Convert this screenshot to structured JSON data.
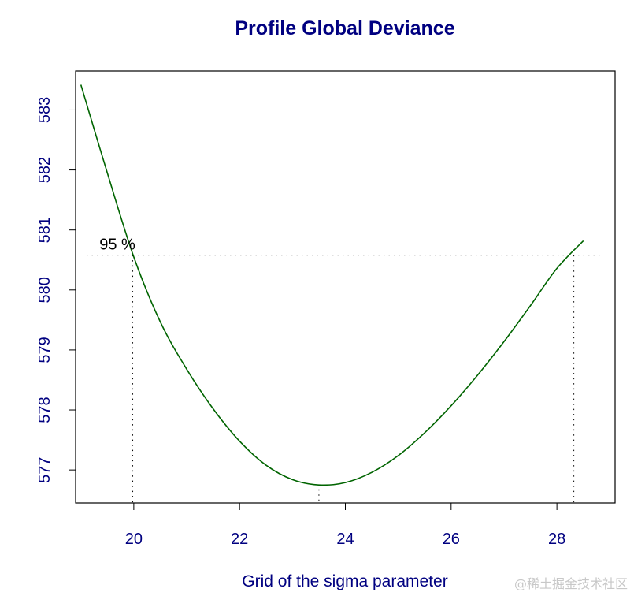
{
  "chart_data": {
    "type": "line",
    "title": "Profile Global Deviance",
    "xlabel": "Grid of the sigma parameter",
    "ylabel": "",
    "xlim": [
      18.9,
      29.1
    ],
    "ylim": [
      576.45,
      583.65
    ],
    "x_ticks": [
      20,
      22,
      24,
      26,
      28
    ],
    "y_ticks": [
      577,
      578,
      579,
      580,
      581,
      582,
      583
    ],
    "grid": false,
    "series": [
      {
        "name": "Global Deviance",
        "color": "#006400",
        "x": [
          19.0,
          19.5,
          20.0,
          20.5,
          21.0,
          21.5,
          22.0,
          22.5,
          23.0,
          23.5,
          24.0,
          24.5,
          25.0,
          25.5,
          26.0,
          26.5,
          27.0,
          27.5,
          28.0,
          28.5
        ],
        "y": [
          583.42,
          581.95,
          580.55,
          579.47,
          578.68,
          578.02,
          577.48,
          577.08,
          576.84,
          576.75,
          576.79,
          576.96,
          577.24,
          577.62,
          578.07,
          578.58,
          579.14,
          579.74,
          580.36,
          580.82
        ]
      }
    ],
    "annotations": {
      "ci_label": "95 %",
      "ci_level_y": 580.58,
      "ci_lower_x": 19.98,
      "ci_upper_x": 28.32,
      "min_x": 23.5
    },
    "colors": {
      "title": "#000080",
      "axis_text": "#000080",
      "curve": "#006400",
      "annotation": "#000000"
    }
  },
  "watermark": "@稀土掘金技术社区"
}
